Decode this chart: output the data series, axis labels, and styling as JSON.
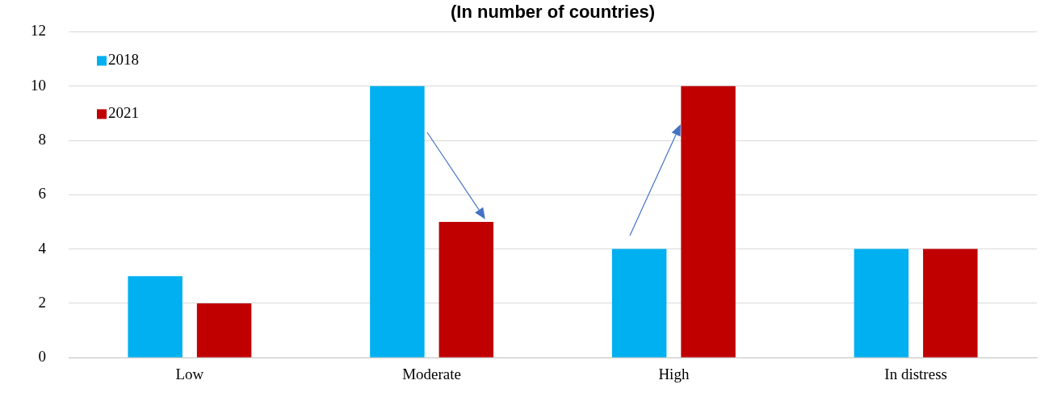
{
  "chart_data": {
    "type": "bar",
    "title": "(In number of countries)",
    "categories": [
      "Low",
      "Moderate",
      "High",
      "In distress"
    ],
    "series": [
      {
        "name": "2018",
        "color": "#00b0f0",
        "values": [
          3,
          10,
          4,
          4
        ]
      },
      {
        "name": "2021",
        "color": "#c00000",
        "values": [
          2,
          5,
          10,
          4
        ]
      }
    ],
    "ylim": [
      0,
      12
    ],
    "yticks": [
      0,
      2,
      4,
      6,
      8,
      10,
      12
    ],
    "grid": "y",
    "legend": "top left"
  }
}
